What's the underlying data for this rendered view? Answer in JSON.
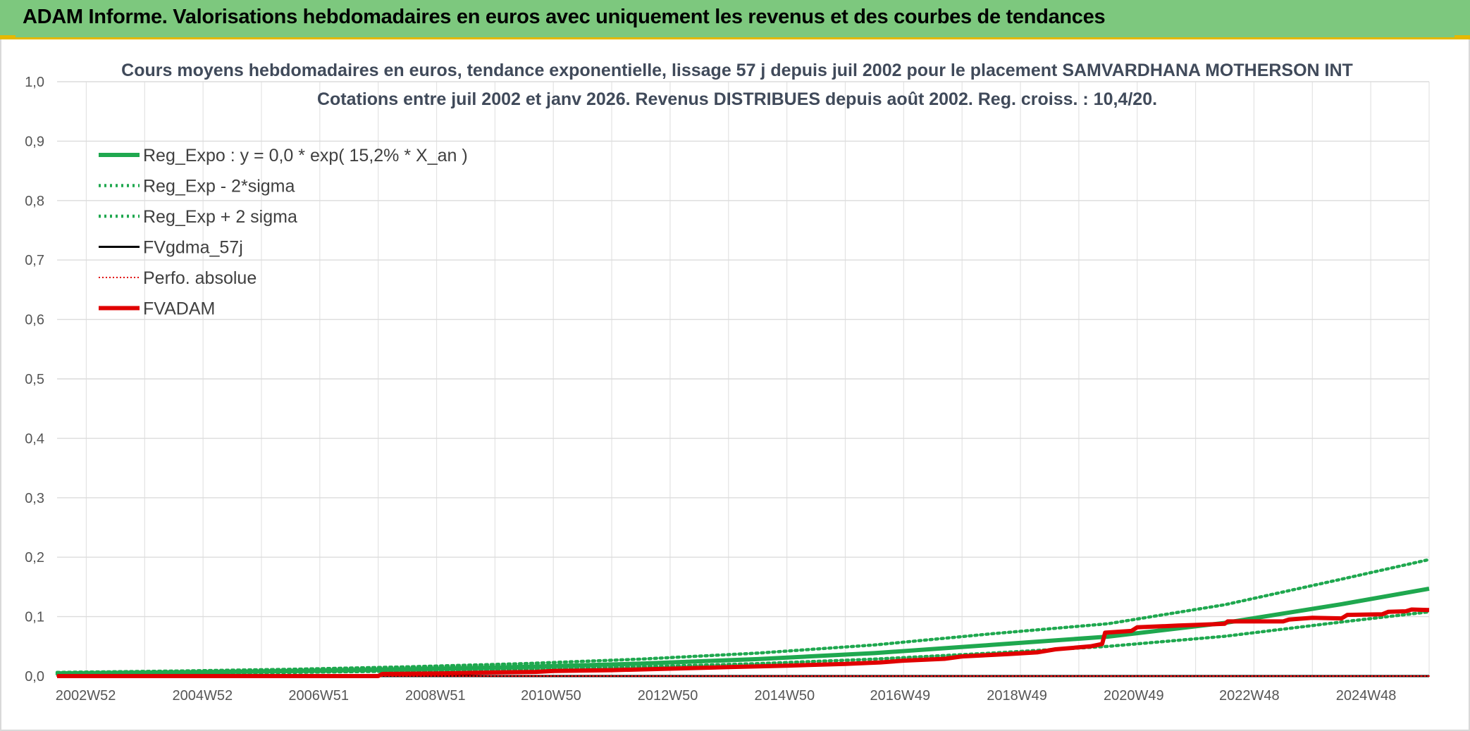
{
  "header": {
    "title": "ADAM Informe. Valorisations hebdomadaires en euros avec uniquement les revenus et des courbes de tendances"
  },
  "colors": {
    "banner": "#7dc87e",
    "accent": "#e6b800",
    "reg_green": "#1fa84f",
    "adam_red": "#e00000",
    "black": "#000000"
  },
  "chart_data": {
    "type": "line",
    "title": "Cours moyens hebdomadaires en euros, tendance exponentielle, lissage 57 j depuis juil 2002 pour le placement SAMVARDHANA MOTHERSON INT",
    "subtitle": "Cotations entre juil 2002 et janv 2026. Revenus DISTRIBUES depuis août 2002. Reg. croiss. : 10,4/20.",
    "ylim": [
      0,
      1.0
    ],
    "xlim": [
      2002.5,
      2026.0
    ],
    "y_ticks": [
      "0,0",
      "0,1",
      "0,2",
      "0,3",
      "0,4",
      "0,5",
      "0,6",
      "0,7",
      "0,8",
      "0,9",
      "1,0"
    ],
    "x_ticks": [
      {
        "label": "2002W52",
        "x": 2002.99
      },
      {
        "label": "2004W52",
        "x": 2004.99
      },
      {
        "label": "2006W51",
        "x": 2006.98
      },
      {
        "label": "2008W51",
        "x": 2008.98
      },
      {
        "label": "2010W50",
        "x": 2010.96
      },
      {
        "label": "2012W50",
        "x": 2012.96
      },
      {
        "label": "2014W50",
        "x": 2014.96
      },
      {
        "label": "2016W49",
        "x": 2016.94
      },
      {
        "label": "2018W49",
        "x": 2018.94
      },
      {
        "label": "2020W49",
        "x": 2020.94
      },
      {
        "label": "2022W48",
        "x": 2022.92
      },
      {
        "label": "2024W48",
        "x": 2024.92
      }
    ],
    "grid": true,
    "legend_position": "top-left",
    "series": [
      {
        "name": "Reg_Expo : y = 0,0 * exp( 15,2% *  X_an )",
        "style": "solid-thick",
        "color": "#1fa84f",
        "points": [
          [
            2002.5,
            0.0046
          ],
          [
            2004.5,
            0.0062
          ],
          [
            2006.5,
            0.0084
          ],
          [
            2008.5,
            0.0114
          ],
          [
            2010.5,
            0.0155
          ],
          [
            2012.5,
            0.021
          ],
          [
            2014.5,
            0.0285
          ],
          [
            2016.5,
            0.0386
          ],
          [
            2018.5,
            0.0524
          ],
          [
            2020.5,
            0.0664
          ],
          [
            2022.5,
            0.0895
          ],
          [
            2024.5,
            0.121
          ],
          [
            2026.0,
            0.147
          ]
        ]
      },
      {
        "name": "Reg_Exp - 2*sigma",
        "style": "dotted",
        "color": "#1fa84f",
        "points": [
          [
            2002.5,
            0.0034
          ],
          [
            2004.5,
            0.0046
          ],
          [
            2006.5,
            0.0062
          ],
          [
            2008.5,
            0.0084
          ],
          [
            2010.5,
            0.0114
          ],
          [
            2012.5,
            0.0155
          ],
          [
            2014.5,
            0.021
          ],
          [
            2016.5,
            0.0285
          ],
          [
            2018.5,
            0.0386
          ],
          [
            2020.5,
            0.05
          ],
          [
            2022.5,
            0.067
          ],
          [
            2024.5,
            0.091
          ],
          [
            2026.0,
            0.108
          ]
        ]
      },
      {
        "name": "Reg_Exp + 2 sigma",
        "style": "dotted",
        "color": "#1fa84f",
        "points": [
          [
            2002.5,
            0.0062
          ],
          [
            2004.5,
            0.0084
          ],
          [
            2006.5,
            0.0114
          ],
          [
            2008.5,
            0.0155
          ],
          [
            2010.5,
            0.021
          ],
          [
            2012.5,
            0.0285
          ],
          [
            2014.5,
            0.0386
          ],
          [
            2016.5,
            0.0524
          ],
          [
            2018.5,
            0.0711
          ],
          [
            2020.5,
            0.088
          ],
          [
            2022.5,
            0.12
          ],
          [
            2024.5,
            0.163
          ],
          [
            2026.0,
            0.196
          ]
        ]
      },
      {
        "name": "FVgdma_57j",
        "style": "solid",
        "color": "#000000",
        "points": [
          [
            2002.5,
            0.0
          ],
          [
            2006.5,
            0.0
          ],
          [
            2010.5,
            0.0
          ],
          [
            2014.5,
            0.0
          ],
          [
            2018.5,
            0.0
          ],
          [
            2022.5,
            0.0
          ],
          [
            2026.0,
            0.0
          ]
        ]
      },
      {
        "name": "Perfo. absolue",
        "style": "dotted-thin",
        "color": "#e00000",
        "points": [
          [
            2002.5,
            0.0
          ],
          [
            2004.0,
            0.0
          ],
          [
            2006.0,
            0.0
          ],
          [
            2008.0,
            0.0
          ],
          [
            2010.0,
            0.0
          ],
          [
            2012.0,
            0.0
          ],
          [
            2014.0,
            0.0
          ],
          [
            2016.0,
            0.0
          ],
          [
            2018.0,
            0.0
          ],
          [
            2020.0,
            0.0
          ],
          [
            2022.0,
            0.0
          ],
          [
            2024.0,
            0.0
          ],
          [
            2026.0,
            0.0
          ]
        ]
      },
      {
        "name": "FVADAM",
        "style": "solid-thick",
        "color": "#e00000",
        "points": [
          [
            2002.5,
            0.0
          ],
          [
            2008.0,
            0.0
          ],
          [
            2008.07,
            0.0035
          ],
          [
            2009.0,
            0.0045
          ],
          [
            2010.0,
            0.006
          ],
          [
            2010.7,
            0.007
          ],
          [
            2011.0,
            0.0085
          ],
          [
            2012.0,
            0.01
          ],
          [
            2013.0,
            0.0125
          ],
          [
            2014.0,
            0.015
          ],
          [
            2015.0,
            0.0175
          ],
          [
            2016.0,
            0.0205
          ],
          [
            2016.6,
            0.023
          ],
          [
            2017.0,
            0.026
          ],
          [
            2017.7,
            0.029
          ],
          [
            2018.0,
            0.033
          ],
          [
            2018.8,
            0.037
          ],
          [
            2019.3,
            0.04
          ],
          [
            2019.6,
            0.045
          ],
          [
            2020.2,
            0.05
          ],
          [
            2020.4,
            0.054
          ],
          [
            2020.45,
            0.073
          ],
          [
            2020.9,
            0.076
          ],
          [
            2021.0,
            0.082
          ],
          [
            2021.7,
            0.085
          ],
          [
            2022.0,
            0.086
          ],
          [
            2022.5,
            0.088
          ],
          [
            2022.55,
            0.092
          ],
          [
            2023.5,
            0.092
          ],
          [
            2023.6,
            0.095
          ],
          [
            2024.0,
            0.098
          ],
          [
            2024.5,
            0.097
          ],
          [
            2024.6,
            0.103
          ],
          [
            2025.2,
            0.104
          ],
          [
            2025.3,
            0.108
          ],
          [
            2025.6,
            0.109
          ],
          [
            2025.7,
            0.112
          ],
          [
            2026.0,
            0.111
          ]
        ]
      }
    ]
  }
}
